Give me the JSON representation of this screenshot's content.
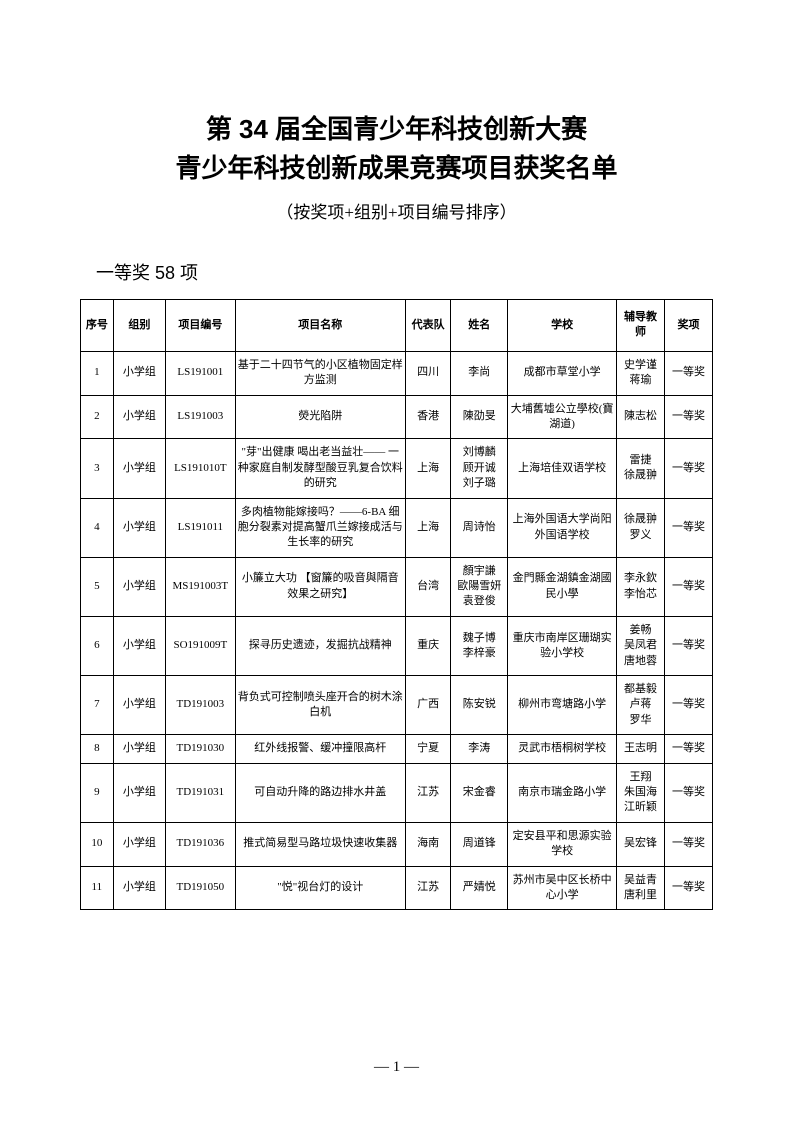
{
  "title_line1": "第 34 届全国青少年科技创新大赛",
  "title_line2": "青少年科技创新成果竞赛项目获奖名单",
  "subtitle": "（按奖项+组别+项目编号排序）",
  "section_heading": "一等奖 58 项",
  "columns": [
    "序号",
    "组别",
    "项目编号",
    "项目名称",
    "代表队",
    "姓名",
    "学校",
    "辅导教师",
    "奖项"
  ],
  "rows": [
    {
      "seq": "1",
      "group": "小学组",
      "code": "LS191001",
      "name": "基于二十四节气的小区植物固定样方监测",
      "team": "四川",
      "student": "李尚",
      "school": "成都市草堂小学",
      "teacher": "史学谨\n蒋瑜",
      "award": "一等奖"
    },
    {
      "seq": "2",
      "group": "小学组",
      "code": "LS191003",
      "name": "熒光陷阱",
      "team": "香港",
      "student": "陳劭旻",
      "school": "大埔舊墟公立學校(寶湖道)",
      "teacher": "陳志松",
      "award": "一等奖"
    },
    {
      "seq": "3",
      "group": "小学组",
      "code": "LS191010T",
      "name": "\"芽\"出健康 喝出老当益壮—— 一种家庭自制发酵型酸豆乳复合饮料的研究",
      "team": "上海",
      "student": "刘博麟\n顾开诚\n刘子璐",
      "school": "上海培佳双语学校",
      "teacher": "雷捷\n徐晟翀",
      "award": "一等奖"
    },
    {
      "seq": "4",
      "group": "小学组",
      "code": "LS191011",
      "name": "多肉植物能嫁接吗？——6-BA 细胞分裂素对提高蟹爪兰嫁接成活与生长率的研究",
      "team": "上海",
      "student": "周诗怡",
      "school": "上海外国语大学尚阳外国语学校",
      "teacher": "徐晟翀\n罗义",
      "award": "一等奖"
    },
    {
      "seq": "5",
      "group": "小学组",
      "code": "MS191003T",
      "name": "小簾立大功 【窗簾的吸音與隔音效果之研究】",
      "team": "台湾",
      "student": "顏宇謙\n歐陽雪妍\n袁登俊",
      "school": "金門縣金湖鎮金湖國民小學",
      "teacher": "李永欽\n李怡芯",
      "award": "一等奖"
    },
    {
      "seq": "6",
      "group": "小学组",
      "code": "SO191009T",
      "name": "探寻历史遗迹，发掘抗战精神",
      "team": "重庆",
      "student": "魏子博\n李梓豪",
      "school": "重庆市南岸区珊瑚实验小学校",
      "teacher": "姜畅\n吴凤君\n唐地蓉",
      "award": "一等奖"
    },
    {
      "seq": "7",
      "group": "小学组",
      "code": "TD191003",
      "name": "背负式可控制喷头座开合的树木涂白机",
      "team": "广西",
      "student": "陈安锐",
      "school": "柳州市弯塘路小学",
      "teacher": "都基毅\n卢蒋\n罗华",
      "award": "一等奖"
    },
    {
      "seq": "8",
      "group": "小学组",
      "code": "TD191030",
      "name": "红外线报警、缓冲撞限高杆",
      "team": "宁夏",
      "student": "李涛",
      "school": "灵武市梧桐树学校",
      "teacher": "王志明",
      "award": "一等奖"
    },
    {
      "seq": "9",
      "group": "小学组",
      "code": "TD191031",
      "name": "可自动升降的路边排水井盖",
      "team": "江苏",
      "student": "宋金睿",
      "school": "南京市瑞金路小学",
      "teacher": "王翔\n朱国海\n江昕颖",
      "award": "一等奖"
    },
    {
      "seq": "10",
      "group": "小学组",
      "code": "TD191036",
      "name": "推式简易型马路垃圾快速收集器",
      "team": "海南",
      "student": "周道锋",
      "school": "定安县平和思源实验学校",
      "teacher": "吴宏锋",
      "award": "一等奖"
    },
    {
      "seq": "11",
      "group": "小学组",
      "code": "TD191050",
      "name": "\"悦\"视台灯的设计",
      "team": "江苏",
      "student": "严婧悦",
      "school": "苏州市吴中区长桥中心小学",
      "teacher": "吴益青\n唐利里",
      "award": "一等奖"
    }
  ],
  "page_number": "— 1 —"
}
